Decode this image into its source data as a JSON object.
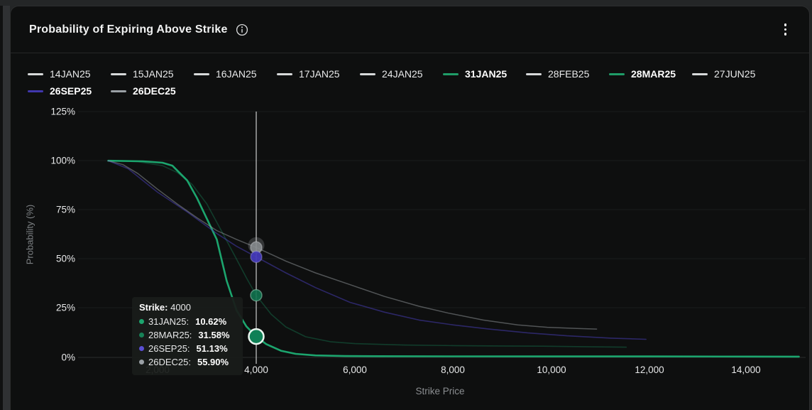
{
  "header": {
    "title": "Probability of Expiring Above Strike"
  },
  "legend": {
    "items": [
      {
        "label": "14JAN25",
        "color": "#d7d9da",
        "bold": false
      },
      {
        "label": "15JAN25",
        "color": "#d7d9da",
        "bold": false
      },
      {
        "label": "16JAN25",
        "color": "#d7d9da",
        "bold": false
      },
      {
        "label": "17JAN25",
        "color": "#d7d9da",
        "bold": false
      },
      {
        "label": "24JAN25",
        "color": "#d7d9da",
        "bold": false
      },
      {
        "label": "31JAN25",
        "color": "#1f9d68",
        "bold": true
      },
      {
        "label": "28FEB25",
        "color": "#d7d9da",
        "bold": false
      },
      {
        "label": "28MAR25",
        "color": "#1f9d68",
        "bold": true
      },
      {
        "label": "27JUN25",
        "color": "#d7d9da",
        "bold": false
      },
      {
        "label": "26SEP25",
        "color": "#4037ae",
        "bold": true
      },
      {
        "label": "26DEC25",
        "color": "#9aa0a5",
        "bold": true
      }
    ]
  },
  "axes": {
    "y": {
      "title": "Probability (%)",
      "ticks": [
        "125%",
        "100%",
        "75%",
        "50%",
        "25%",
        "0%"
      ]
    },
    "x": {
      "title": "Strike Price",
      "ticks": [
        "2,000",
        "4,000",
        "6,000",
        "8,000",
        "10,000",
        "12,000",
        "14,000"
      ]
    }
  },
  "tooltip": {
    "title_label": "Strike:",
    "title_value": "4000",
    "rows": [
      {
        "label": "31JAN25:",
        "value": "10.62%",
        "color": "#1ca56e"
      },
      {
        "label": "28MAR25:",
        "value": "31.58%",
        "color": "#178257"
      },
      {
        "label": "26SEP25:",
        "value": "51.13%",
        "color": "#5a4fd4"
      },
      {
        "label": "26DEC25:",
        "value": "55.90%",
        "color": "#9aa0a5"
      }
    ]
  },
  "chart_data": {
    "type": "line",
    "title": "Probability of Expiring Above Strike",
    "xlabel": "Strike Price",
    "ylabel": "Probability (%)",
    "xlim": [
      1000,
      15200
    ],
    "ylim": [
      0,
      125
    ],
    "x_ticks": [
      2000,
      4000,
      6000,
      8000,
      10000,
      12000,
      14000
    ],
    "y_ticks": [
      0,
      25,
      50,
      75,
      100,
      125
    ],
    "legend_position": "top",
    "grid": false,
    "series": [
      {
        "name": "31JAN25",
        "color": "#1ca56e",
        "opacity": 1.0,
        "width": 2.6,
        "values": [
          [
            1000,
            100
          ],
          [
            1700,
            99.7
          ],
          [
            2100,
            99
          ],
          [
            2300,
            97.5
          ],
          [
            2600,
            90
          ],
          [
            2800,
            81
          ],
          [
            3000,
            70.5
          ],
          [
            3200,
            60
          ],
          [
            3400,
            39
          ],
          [
            3600,
            24
          ],
          [
            3800,
            15.8
          ],
          [
            4000,
            10.62
          ],
          [
            4200,
            6.8
          ],
          [
            4500,
            3.4
          ],
          [
            4800,
            1.8
          ],
          [
            5200,
            1.0
          ],
          [
            5800,
            0.7
          ],
          [
            6500,
            0.6
          ],
          [
            8000,
            0.55
          ],
          [
            10000,
            0.5
          ],
          [
            12000,
            0.5
          ],
          [
            14000,
            0.45
          ],
          [
            15000,
            0.4
          ]
        ]
      },
      {
        "name": "28MAR25",
        "color": "#1ca56e",
        "opacity": 0.3,
        "width": 1.6,
        "values": [
          [
            1000,
            100
          ],
          [
            1600,
            99.5
          ],
          [
            2100,
            97.5
          ],
          [
            2400,
            94
          ],
          [
            2700,
            88
          ],
          [
            3000,
            78
          ],
          [
            3300,
            64
          ],
          [
            3600,
            50
          ],
          [
            3800,
            40.5
          ],
          [
            4000,
            31.58
          ],
          [
            4300,
            22
          ],
          [
            4600,
            15.5
          ],
          [
            5000,
            10.5
          ],
          [
            5500,
            8
          ],
          [
            6000,
            7
          ],
          [
            7000,
            6.3
          ],
          [
            8000,
            6
          ],
          [
            9000,
            5.8
          ],
          [
            9800,
            5.7
          ],
          [
            10800,
            5.4
          ],
          [
            11500,
            5.2
          ]
        ]
      },
      {
        "name": "26SEP25",
        "color": "#4a3fc0",
        "opacity": 0.5,
        "width": 1.6,
        "values": [
          [
            1000,
            100
          ],
          [
            1400,
            96
          ],
          [
            2000,
            84
          ],
          [
            2600,
            74
          ],
          [
            3200,
            63
          ],
          [
            3600,
            56.5
          ],
          [
            4000,
            51.13
          ],
          [
            4600,
            43
          ],
          [
            5200,
            35.5
          ],
          [
            5900,
            28
          ],
          [
            6600,
            23
          ],
          [
            7300,
            19
          ],
          [
            8000,
            16.5
          ],
          [
            8700,
            14.5
          ],
          [
            9500,
            12.5
          ],
          [
            10300,
            11
          ],
          [
            11200,
            9.8
          ],
          [
            11900,
            9.2
          ]
        ]
      },
      {
        "name": "26DEC25",
        "color": "#9aa0a5",
        "opacity": 0.48,
        "width": 1.5,
        "values": [
          [
            1000,
            100
          ],
          [
            1300,
            98
          ],
          [
            1600,
            93.5
          ],
          [
            2000,
            85.5
          ],
          [
            2400,
            78
          ],
          [
            2800,
            71
          ],
          [
            3200,
            64.5
          ],
          [
            3600,
            60
          ],
          [
            4000,
            55.9
          ],
          [
            4600,
            49
          ],
          [
            5200,
            43
          ],
          [
            5900,
            37
          ],
          [
            6600,
            31
          ],
          [
            7300,
            26
          ],
          [
            7900,
            22.5
          ],
          [
            8600,
            19
          ],
          [
            9300,
            16.5
          ],
          [
            9900,
            15.3
          ],
          [
            10500,
            14.7
          ],
          [
            10900,
            14.4
          ]
        ]
      }
    ],
    "crosshair": {
      "strike": 4000,
      "points": [
        {
          "series": "26DEC25",
          "value": 55.9,
          "r": 8,
          "fill": "#85898d",
          "fill_opacity": 0.9,
          "stroke": "#c9cdd0",
          "stroke_opacity": 0.45,
          "stroke_width": 1.5,
          "halo": true,
          "halo_r": 11.5,
          "halo_opacity": 0.22
        },
        {
          "series": "26SEP25",
          "value": 51.13,
          "r": 8,
          "fill": "#453ab8",
          "fill_opacity": 0.95,
          "stroke": "#b9b6e0",
          "stroke_opacity": 0.35,
          "stroke_width": 1.5,
          "halo": false
        },
        {
          "series": "28MAR25",
          "value": 31.58,
          "r": 8,
          "fill": "#11734f",
          "fill_opacity": 0.9,
          "stroke": "#9fd6bd",
          "stroke_opacity": 0.5,
          "stroke_width": 1.5,
          "halo": false
        },
        {
          "series": "31JAN25",
          "value": 10.62,
          "r": 10.5,
          "fill": "#0f8056",
          "fill_opacity": 1.0,
          "stroke": "#eaf5ef",
          "stroke_opacity": 1.0,
          "stroke_width": 2.5,
          "halo": false
        }
      ]
    }
  }
}
